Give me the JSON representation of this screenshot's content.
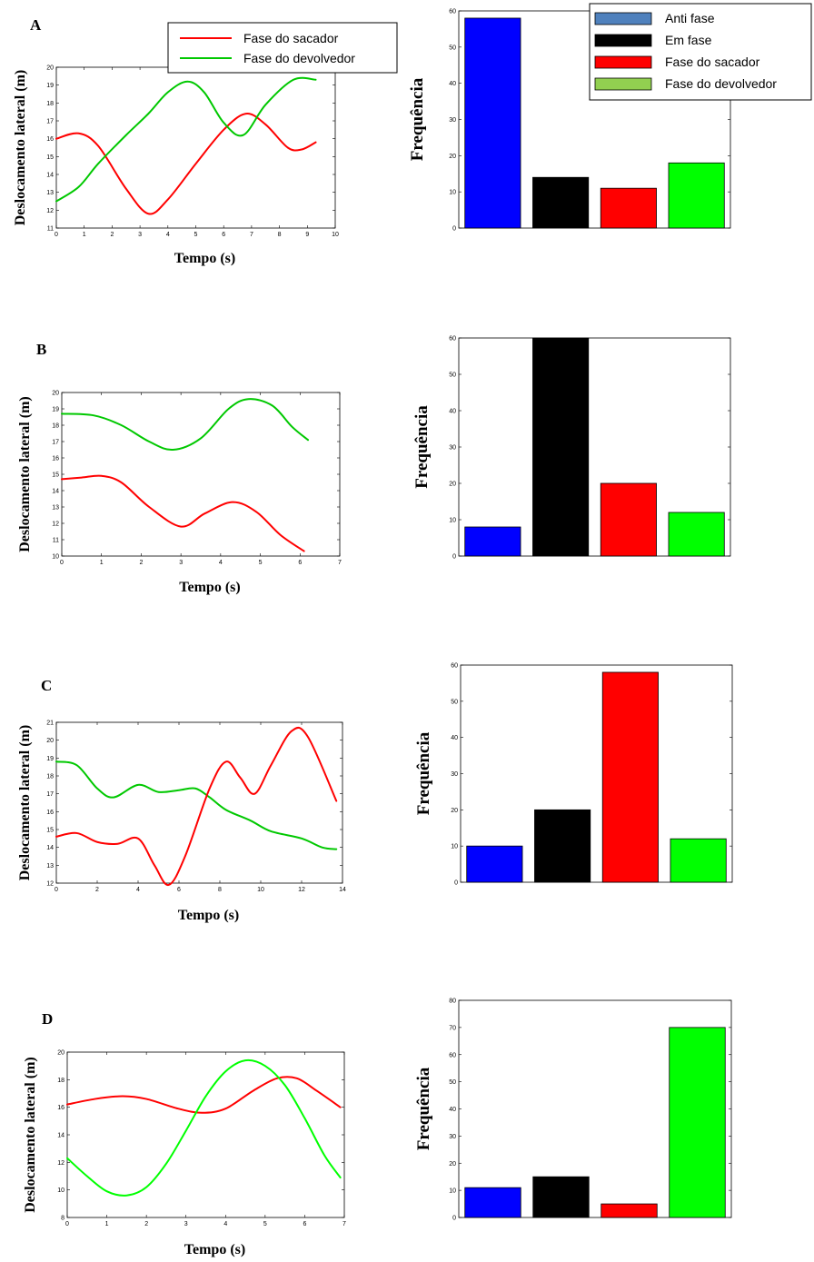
{
  "chart_data": [
    {
      "panel": "A",
      "type": "line",
      "xlabel": "Tempo (s)",
      "ylabel": "Deslocamento lateral (m)",
      "xlim": [
        0,
        10
      ],
      "ylim": [
        11,
        20
      ],
      "xticks": [
        0,
        1,
        2,
        3,
        4,
        5,
        6,
        7,
        8,
        9,
        10
      ],
      "yticks": [
        11,
        12,
        13,
        14,
        15,
        16,
        17,
        18,
        19,
        20
      ],
      "legend": {
        "position": "top",
        "entries": [
          "Fase do sacador",
          "Fase do devolvedor"
        ]
      },
      "series": [
        {
          "name": "Fase do sacador",
          "color": "#ff0000",
          "x": [
            0,
            0.8,
            1.5,
            2.5,
            3.3,
            4,
            5,
            6,
            6.8,
            7.5,
            8.3,
            8.8,
            9.3
          ],
          "y": [
            16.0,
            16.3,
            15.6,
            13.2,
            11.8,
            12.6,
            14.6,
            16.5,
            17.4,
            16.8,
            15.5,
            15.4,
            15.8
          ]
        },
        {
          "name": "Fase do devolvedor",
          "color": "#00c800",
          "x": [
            0,
            0.8,
            1.5,
            2.5,
            3.3,
            4,
            4.7,
            5.3,
            6,
            6.7,
            7.5,
            8.5,
            9.3
          ],
          "y": [
            12.5,
            13.3,
            14.6,
            16.2,
            17.4,
            18.6,
            19.2,
            18.6,
            16.9,
            16.2,
            17.9,
            19.3,
            19.3
          ]
        }
      ]
    },
    {
      "panel": "A",
      "type": "bar",
      "ylabel": "Frequência",
      "ylim": [
        0,
        60
      ],
      "yticks": [
        0,
        10,
        20,
        30,
        40,
        50,
        60
      ],
      "categories": [
        "Anti fase",
        "Em fase",
        "Fase do sacador",
        "Fase do devolvedor"
      ],
      "values": [
        58,
        14,
        11,
        18
      ],
      "colors": [
        "#0000ff",
        "#000000",
        "#ff0000",
        "#00ff00"
      ],
      "legend": {
        "position": "top-right",
        "entries": [
          "Anti fase",
          "Em fase",
          "Fase do sacador",
          "Fase do devolvedor"
        ],
        "colors": [
          "#4f81bd",
          "#000000",
          "#ff0000",
          "#92d050"
        ]
      }
    },
    {
      "panel": "B",
      "type": "line",
      "xlabel": "Tempo (s)",
      "ylabel": "Deslocamento lateral (m)",
      "xlim": [
        0,
        7
      ],
      "ylim": [
        10,
        20
      ],
      "xticks": [
        0,
        1,
        2,
        3,
        4,
        5,
        6,
        7
      ],
      "yticks": [
        10,
        11,
        12,
        13,
        14,
        15,
        16,
        17,
        18,
        19,
        20
      ],
      "series": [
        {
          "name": "",
          "color": "#00c800",
          "x": [
            0,
            0.8,
            1.5,
            2.2,
            2.8,
            3.5,
            4.2,
            4.7,
            5.3,
            5.8,
            6.2
          ],
          "y": [
            18.7,
            18.6,
            18.0,
            17.0,
            16.5,
            17.2,
            19.0,
            19.6,
            19.2,
            17.9,
            17.1
          ]
        },
        {
          "name": "",
          "color": "#ff0000",
          "x": [
            0,
            0.5,
            1,
            1.5,
            2.2,
            3,
            3.6,
            4.3,
            4.9,
            5.5,
            6.1
          ],
          "y": [
            14.7,
            14.8,
            14.9,
            14.5,
            13.0,
            11.8,
            12.6,
            13.3,
            12.7,
            11.3,
            10.3
          ]
        }
      ]
    },
    {
      "panel": "B",
      "type": "bar",
      "ylabel": "Frequência",
      "ylim": [
        0,
        60
      ],
      "yticks": [
        0,
        10,
        20,
        30,
        40,
        50,
        60
      ],
      "categories": [
        "Anti fase",
        "Em fase",
        "Fase do sacador",
        "Fase do devolvedor"
      ],
      "values": [
        8,
        60,
        20,
        12
      ],
      "colors": [
        "#0000ff",
        "#000000",
        "#ff0000",
        "#00ff00"
      ]
    },
    {
      "panel": "C",
      "type": "line",
      "xlabel": "Tempo (s)",
      "ylabel": "Deslocamento lateral (m)",
      "xlim": [
        0,
        14
      ],
      "ylim": [
        12,
        21
      ],
      "xticks": [
        0,
        2,
        4,
        6,
        8,
        10,
        12,
        14
      ],
      "yticks": [
        12,
        13,
        14,
        15,
        16,
        17,
        18,
        19,
        20,
        21
      ],
      "series": [
        {
          "name": "",
          "color": "#00c800",
          "x": [
            0,
            1,
            2,
            2.8,
            4,
            5,
            6,
            6.8,
            7.5,
            8.3,
            9.5,
            10.5,
            12,
            13,
            13.7
          ],
          "y": [
            18.8,
            18.6,
            17.3,
            16.8,
            17.5,
            17.1,
            17.2,
            17.3,
            16.8,
            16.1,
            15.5,
            14.9,
            14.5,
            14.0,
            13.9
          ]
        },
        {
          "name": "",
          "color": "#ff0000",
          "x": [
            0,
            1,
            2,
            3,
            4,
            4.8,
            5.5,
            6.3,
            7.5,
            8.3,
            9,
            9.7,
            10.5,
            11.5,
            12.3,
            13.7
          ],
          "y": [
            14.6,
            14.8,
            14.3,
            14.2,
            14.5,
            13.0,
            11.9,
            13.5,
            17.3,
            18.8,
            17.9,
            17.0,
            18.6,
            20.5,
            20.2,
            16.6
          ]
        }
      ]
    },
    {
      "panel": "C",
      "type": "bar",
      "ylabel": "Frequência",
      "ylim": [
        0,
        60
      ],
      "yticks": [
        0,
        10,
        20,
        30,
        40,
        50,
        60
      ],
      "categories": [
        "Anti fase",
        "Em fase",
        "Fase do sacador",
        "Fase do devolvedor"
      ],
      "values": [
        10,
        20,
        58,
        12
      ],
      "colors": [
        "#0000ff",
        "#000000",
        "#ff0000",
        "#00ff00"
      ]
    },
    {
      "panel": "D",
      "type": "line",
      "xlabel": "Tempo (s)",
      "ylabel": "Deslocamento lateral (m)",
      "xlim": [
        0,
        7
      ],
      "ylim": [
        8,
        20
      ],
      "xticks": [
        0,
        1,
        2,
        3,
        4,
        5,
        6,
        7
      ],
      "yticks": [
        8,
        10,
        12,
        14,
        16,
        18,
        20
      ],
      "series": [
        {
          "name": "",
          "color": "#ff0000",
          "x": [
            0,
            0.7,
            1.4,
            2,
            2.8,
            3.4,
            4,
            4.7,
            5.3,
            5.8,
            6.3,
            6.9
          ],
          "y": [
            16.2,
            16.6,
            16.8,
            16.6,
            15.9,
            15.6,
            15.9,
            17.2,
            18.1,
            18.1,
            17.2,
            16.0
          ]
        },
        {
          "name": "",
          "color": "#00ff00",
          "x": [
            0,
            0.5,
            1,
            1.5,
            2,
            2.5,
            3,
            3.5,
            4,
            4.5,
            5,
            5.5,
            6,
            6.5,
            6.9
          ],
          "y": [
            12.3,
            11.0,
            9.9,
            9.6,
            10.2,
            11.9,
            14.3,
            16.8,
            18.6,
            19.4,
            19.0,
            17.6,
            15.2,
            12.5,
            10.9
          ]
        }
      ]
    },
    {
      "panel": "D",
      "type": "bar",
      "ylabel": "Frequência",
      "ylim": [
        0,
        80
      ],
      "yticks": [
        0,
        10,
        20,
        30,
        40,
        50,
        60,
        70,
        80
      ],
      "categories": [
        "Anti fase",
        "Em fase",
        "Fase do sacador",
        "Fase do devolvedor"
      ],
      "values": [
        11,
        15,
        5,
        70
      ],
      "colors": [
        "#0000ff",
        "#000000",
        "#ff0000",
        "#00ff00"
      ]
    }
  ]
}
